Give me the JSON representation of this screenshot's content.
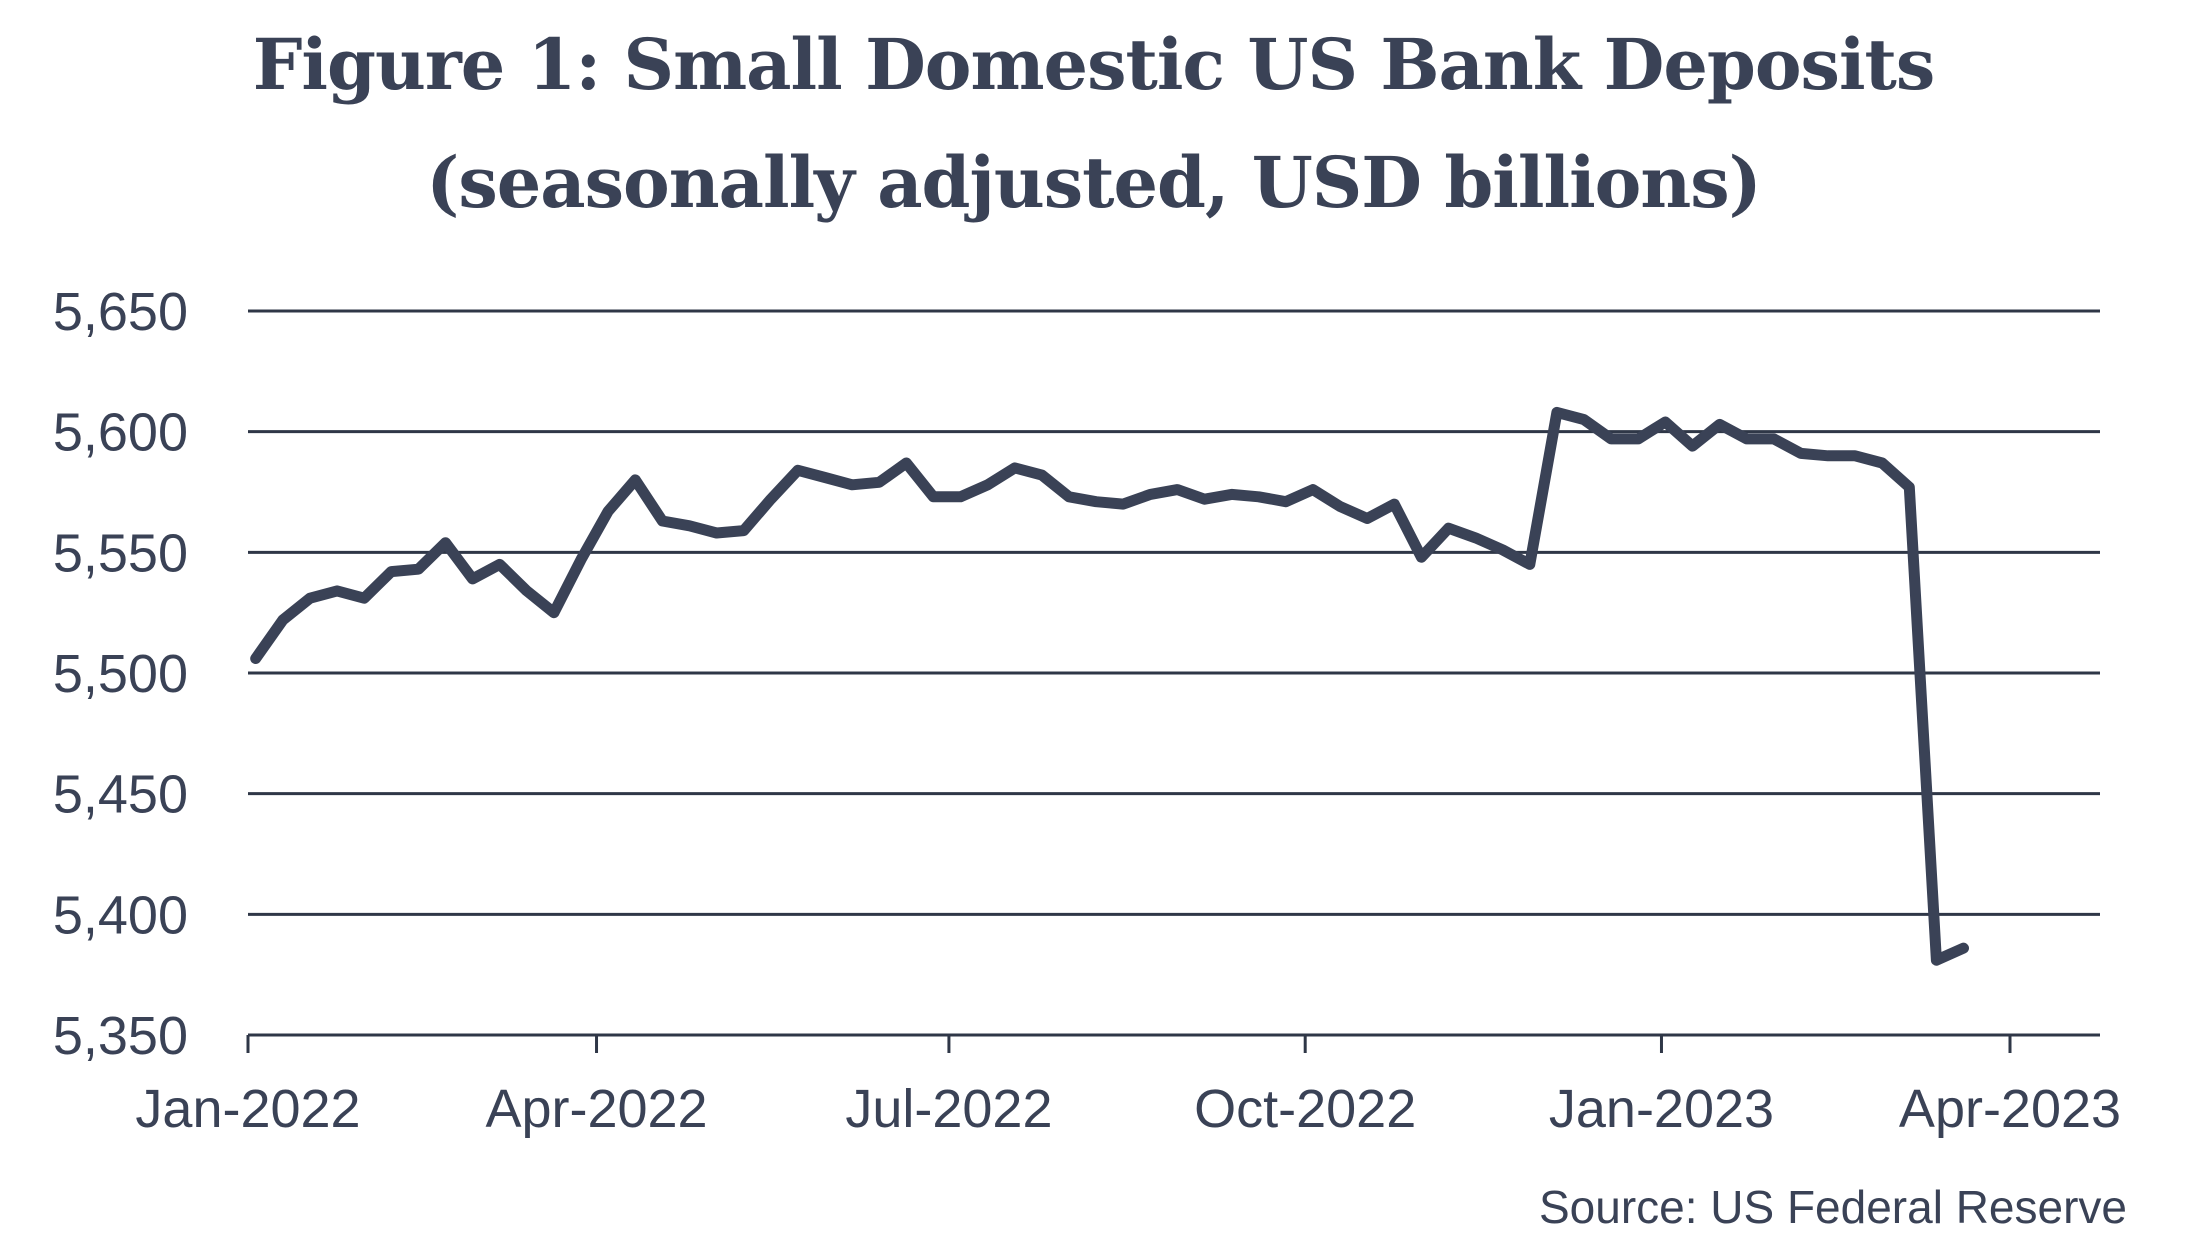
{
  "title_line1": "Figure 1: Small Domestic US Bank Deposits",
  "title_line2": "(seasonally adjusted, USD billions)",
  "source": "Source: US Federal Reserve",
  "colors": {
    "line": "#3a4256",
    "grid": "#2f3747",
    "text": "#3a4256"
  },
  "chart_data": {
    "type": "line",
    "title": "Figure 1: Small Domestic US Bank Deposits (seasonally adjusted, USD billions)",
    "ylim": [
      5350,
      5650
    ],
    "yticks": [
      5350,
      5400,
      5450,
      5500,
      5550,
      5600,
      5650
    ],
    "ytick_labels": [
      "5,350",
      "5,400",
      "5,450",
      "5,500",
      "5,550",
      "5,600",
      "5,650"
    ],
    "xticks": [
      "2022-01-01",
      "2022-04-01",
      "2022-07-01",
      "2022-10-01",
      "2023-01-01",
      "2023-04-01"
    ],
    "xtick_labels": [
      "Jan-2022",
      "Apr-2022",
      "Jul-2022",
      "Oct-2022",
      "Jan-2023",
      "Apr-2023"
    ],
    "grid": true,
    "legend": "none",
    "series": [
      {
        "x": [
          "2022-01-03",
          "2022-01-10",
          "2022-01-17",
          "2022-01-24",
          "2022-01-31",
          "2022-02-07",
          "2022-02-14",
          "2022-02-21",
          "2022-02-28",
          "2022-03-07",
          "2022-03-14",
          "2022-03-21",
          "2022-03-28",
          "2022-04-04",
          "2022-04-11",
          "2022-04-18",
          "2022-04-25",
          "2022-05-02",
          "2022-05-09",
          "2022-05-16",
          "2022-05-23",
          "2022-05-30",
          "2022-06-06",
          "2022-06-13",
          "2022-06-20",
          "2022-06-27",
          "2022-07-04",
          "2022-07-11",
          "2022-07-18",
          "2022-07-25",
          "2022-08-01",
          "2022-08-08",
          "2022-08-15",
          "2022-08-22",
          "2022-08-29",
          "2022-09-05",
          "2022-09-12",
          "2022-09-19",
          "2022-09-26",
          "2022-10-03",
          "2022-10-10",
          "2022-10-17",
          "2022-10-24",
          "2022-10-31",
          "2022-11-07",
          "2022-11-14",
          "2022-11-21",
          "2022-11-28",
          "2022-12-05",
          "2022-12-12",
          "2022-12-19",
          "2022-12-26",
          "2023-01-02",
          "2023-01-09",
          "2023-01-16",
          "2023-01-23",
          "2023-01-30",
          "2023-02-06",
          "2023-02-13",
          "2023-02-20",
          "2023-02-27",
          "2023-03-06",
          "2023-03-13",
          "2023-03-20"
        ],
        "y": [
          5506,
          5522,
          5531,
          5534,
          5531,
          5542,
          5543,
          5554,
          5539,
          5545,
          5534,
          5525,
          5547,
          5567,
          5580,
          5563,
          5561,
          5558,
          5559,
          5572,
          5584,
          5581,
          5578,
          5579,
          5587,
          5573,
          5573,
          5578,
          5585,
          5582,
          5573,
          5571,
          5570,
          5574,
          5576,
          5572,
          5574,
          5573,
          5571,
          5576,
          5569,
          5564,
          5570,
          5548,
          5560,
          5556,
          5551,
          5545,
          5608,
          5605,
          5597,
          5597,
          5604,
          5594,
          5603,
          5597,
          5597,
          5591,
          5590,
          5590,
          5587,
          5577,
          5381,
          5386
        ]
      }
    ]
  }
}
